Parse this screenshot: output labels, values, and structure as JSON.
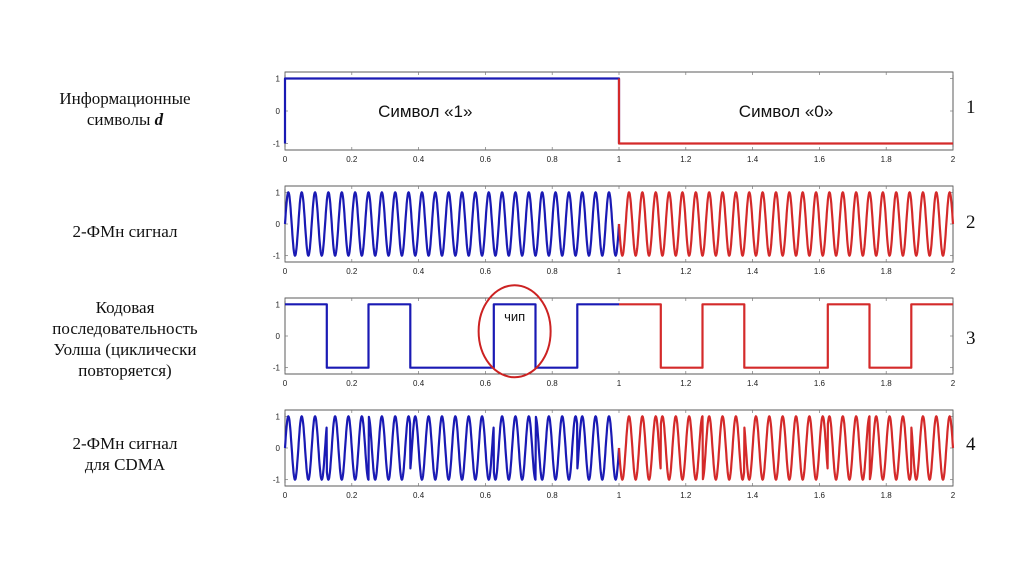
{
  "rows": [
    {
      "label_lines": [
        "Информационные",
        "символы"
      ],
      "label_italic": "d",
      "number": "1"
    },
    {
      "label_lines": [
        "2-ФМн сигнал"
      ],
      "number": "2"
    },
    {
      "label_lines": [
        "Кодовая",
        "последовательность",
        "Уолша (циклически",
        "повторяется)"
      ],
      "number": "3"
    },
    {
      "label_lines": [
        "2-ФМн сигнал",
        "для CDMA"
      ],
      "number": "4"
    }
  ],
  "annotations": {
    "symbol_one": "Символ «1»",
    "symbol_zero": "Символ «0»",
    "chip": "чип"
  },
  "chart_data": [
    {
      "type": "line",
      "title": "Информационные символы d",
      "xlim": [
        0,
        2
      ],
      "ylim": [
        -1.2,
        1.2
      ],
      "xticks": [
        "0",
        "0.2",
        "0.4",
        "0.6",
        "0.8",
        "1",
        "1.2",
        "1.4",
        "1.6",
        "1.8",
        "2"
      ],
      "yticks": [
        "1",
        "0",
        "-1"
      ],
      "series": [
        {
          "color": "#1a1ab4",
          "x": [
            0,
            0,
            1,
            1
          ],
          "y": [
            -1,
            1,
            1,
            -1
          ]
        },
        {
          "color": "#d42a2a",
          "x": [
            1,
            1,
            2
          ],
          "y": [
            1,
            -1,
            -1
          ]
        }
      ]
    },
    {
      "type": "line",
      "title": "2-ФМн сигнал",
      "xlim": [
        0,
        2
      ],
      "ylim": [
        -1.2,
        1.2
      ],
      "xticks": [
        "0",
        "0.2",
        "0.4",
        "0.6",
        "0.8",
        "1",
        "1.2",
        "1.4",
        "1.6",
        "1.8",
        "2"
      ],
      "yticks": [
        "1",
        "0",
        "-1"
      ],
      "signal": {
        "kind": "bpsk",
        "cycles_per_unit": 25,
        "data_symbols": [
          1,
          -1
        ]
      },
      "colors": [
        "#1a1ab4",
        "#d42a2a"
      ]
    },
    {
      "type": "line",
      "title": "Кодовая последовательность Уолша",
      "xlim": [
        0,
        2
      ],
      "ylim": [
        -1.2,
        1.2
      ],
      "xticks": [
        "0",
        "0.2",
        "0.4",
        "0.6",
        "0.8",
        "1",
        "1.2",
        "1.4",
        "1.6",
        "1.8",
        "2"
      ],
      "yticks": [
        "1",
        "0",
        "-1"
      ],
      "walsh_chips": [
        1,
        -1,
        1,
        -1,
        -1,
        1,
        -1,
        1
      ],
      "chip_duration": 0.125,
      "colors": [
        "#1a1ab4",
        "#d42a2a"
      ]
    },
    {
      "type": "line",
      "title": "2-ФМн сигнал для CDMA",
      "xlim": [
        0,
        2
      ],
      "ylim": [
        -1.2,
        1.2
      ],
      "xticks": [
        "0",
        "0.2",
        "0.4",
        "0.6",
        "0.8",
        "1",
        "1.2",
        "1.4",
        "1.6",
        "1.8",
        "2"
      ],
      "yticks": [
        "1",
        "0",
        "-1"
      ],
      "signal": {
        "kind": "bpsk_spread",
        "cycles_per_unit": 25,
        "data_symbols": [
          1,
          -1
        ]
      },
      "colors": [
        "#1a1ab4",
        "#d42a2a"
      ]
    }
  ],
  "colors": {
    "series_one": "#1a1ab4",
    "series_zero": "#d42a2a",
    "chip_circle": "#cc2222",
    "axis": "#333333",
    "grid_tick": "#777777"
  }
}
